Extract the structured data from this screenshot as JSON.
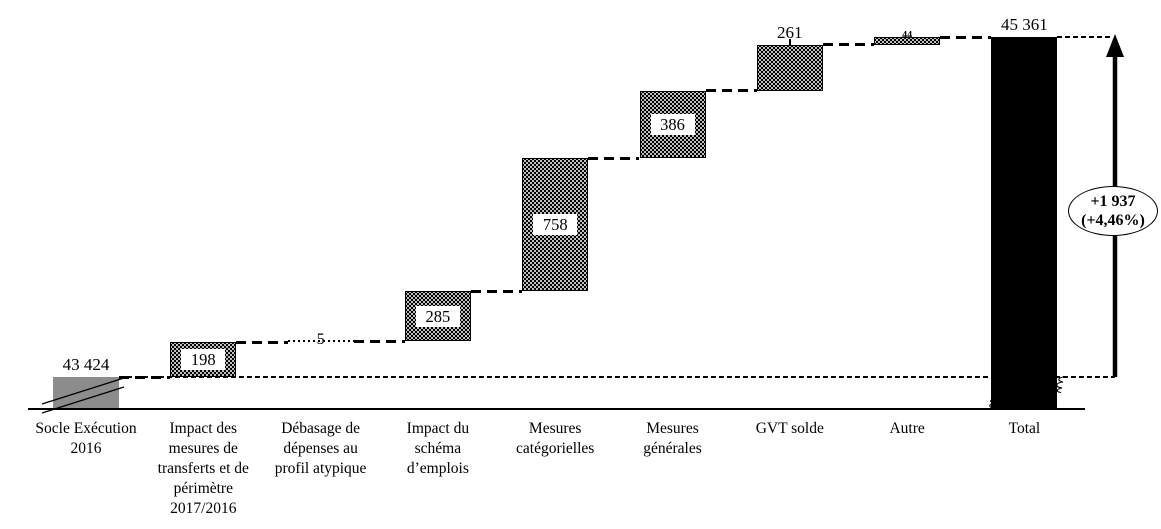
{
  "chart_data": {
    "type": "bar",
    "subtype": "waterfall",
    "title": "",
    "baseline_value": 43424,
    "total_value": 45361,
    "annotation": {
      "delta_label": "+1 937",
      "pct_label": "(+4,46%)"
    },
    "columns": [
      {
        "category": "Socle Exécution 2016",
        "role": "base",
        "value": 43424,
        "display": "43 424",
        "value_label_position": "above",
        "bar_style": "gray-truncated"
      },
      {
        "category": "Impact des mesures de transferts et de périmètre 2017/2016",
        "role": "increase",
        "value": 198,
        "display": "198",
        "value_label_position": "inside-box",
        "bar_style": "dotted"
      },
      {
        "category": "Débasage de dépenses au profil atypique",
        "role": "increase",
        "value": 5,
        "display": "5",
        "value_label_position": "on-line",
        "bar_style": "none"
      },
      {
        "category": "Impact du schéma d’emplois",
        "role": "increase",
        "value": 285,
        "display": "285",
        "value_label_position": "inside-box",
        "bar_style": "dotted"
      },
      {
        "category": "Mesures catégorielles",
        "role": "increase",
        "value": 758,
        "display": "758",
        "value_label_position": "inside-box",
        "bar_style": "dotted"
      },
      {
        "category": "Mesures générales",
        "role": "increase",
        "value": 386,
        "display": "386",
        "value_label_position": "inside-box",
        "bar_style": "dotted"
      },
      {
        "category": "GVT solde",
        "role": "increase",
        "value": 261,
        "display": "261",
        "value_label_position": "above",
        "bar_style": "dotted"
      },
      {
        "category": "Autre",
        "role": "increase",
        "value": 44,
        "display": "44",
        "value_label_position": "tiny-inside",
        "bar_style": "dotted"
      },
      {
        "category": "Total",
        "role": "total",
        "value": 45361,
        "display": "45 361",
        "value_label_position": "above",
        "bar_style": "solid-truncated"
      }
    ],
    "colors": {
      "increase_bar": "#000000",
      "increase_bar_pattern_dots": "#ffffff",
      "base_bar": "#8c8c8c",
      "total_bar": "#000000",
      "text": "#000000",
      "background": "#ffffff"
    },
    "layout_hints": {
      "grid": false,
      "legend": "none",
      "value_axis_visible": false,
      "value_axis_truncated": true,
      "connectors": "dashed",
      "baseline_reference_line": "fine-dashed at 43424",
      "top_reference_line": "dashed at 45361"
    }
  }
}
